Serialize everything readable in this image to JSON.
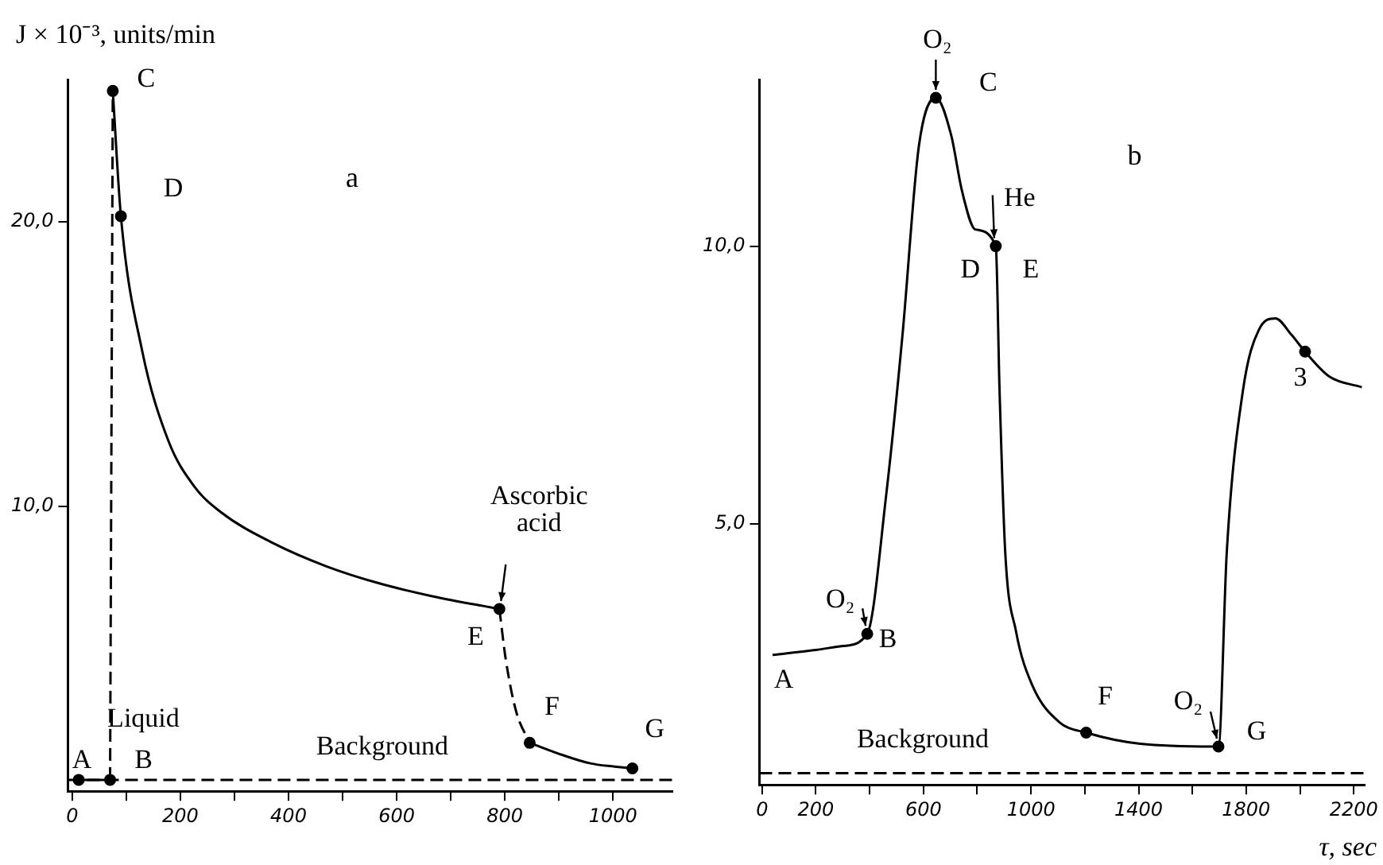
{
  "chart_data": [
    {
      "type": "line",
      "title": "a",
      "ylabel": "J × 10⁻³, units/min",
      "xlim": [
        -8,
        1110
      ],
      "xticks": [
        0,
        {
          "value": 100,
          "label": null
        },
        200,
        {
          "value": 300,
          "label": null
        },
        400,
        {
          "value": 500,
          "label": null
        },
        600,
        {
          "value": 700,
          "label": null
        },
        800,
        {
          "value": 900,
          "label": null
        },
        1000
      ],
      "ylim": [
        0,
        25
      ],
      "yticks": [
        {
          "value": 10,
          "label": "10,0"
        },
        {
          "value": 20,
          "label": "20,0"
        }
      ],
      "series": [
        {
          "color": "#000000",
          "line_style": "solid",
          "marker": "none",
          "x": [
            12,
            70
          ],
          "values": [
            0.4,
            0.4
          ]
        },
        {
          "color": "#000000",
          "line_style": "dashed",
          "marker": "none",
          "x": [
            70,
            75
          ],
          "values": [
            0.4,
            24.6
          ]
        },
        {
          "color": "#000000",
          "line_style": "solid",
          "marker": "none",
          "x": [
            75,
            90,
            129,
            178,
            226,
            275,
            373,
            470,
            568,
            666,
            790
          ],
          "values": [
            24.6,
            20.2,
            15.5,
            12.3,
            10.7,
            9.8,
            8.7,
            7.9,
            7.3,
            6.85,
            6.4
          ]
        },
        {
          "color": "#000000",
          "line_style": "dashed",
          "marker": "none",
          "x": [
            790,
            802,
            821,
            846
          ],
          "values": [
            6.4,
            4.6,
            2.8,
            1.7
          ]
        },
        {
          "color": "#000000",
          "line_style": "solid",
          "marker": "none",
          "x": [
            846,
            907,
            958,
            1036
          ],
          "values": [
            1.7,
            1.27,
            0.98,
            0.8
          ]
        },
        {
          "type": "scatter",
          "color": "#000000",
          "marker": "circle",
          "x": [
            12,
            70,
            75,
            90,
            790,
            846,
            1036
          ],
          "values": [
            0.4,
            0.4,
            24.6,
            20.2,
            6.4,
            1.7,
            0.8
          ]
        }
      ],
      "ref_lines": [
        {
          "axis": "y",
          "value": 0.4,
          "label": "Background",
          "color": "#000000",
          "line_style": "dashed"
        }
      ],
      "annotations": [
        {
          "text": "A",
          "x": 12,
          "y": 0.4
        },
        {
          "text": "B",
          "x": 70,
          "y": 0.4
        },
        {
          "text": "C",
          "x": 75,
          "y": 24.6
        },
        {
          "text": "D",
          "x": 90,
          "y": 20.2
        },
        {
          "text": "E",
          "x": 790,
          "y": 6.4
        },
        {
          "text": "F",
          "x": 846,
          "y": 1.7
        },
        {
          "text": "G",
          "x": 1036,
          "y": 0.8
        },
        {
          "text": "Liquid",
          "x": 67,
          "y": 0.4
        },
        {
          "text": "Ascorbic acid",
          "x": 790,
          "y": 6.4
        }
      ]
    },
    {
      "type": "line",
      "title": "b",
      "xlabel": "τ, sec",
      "xlim": [
        -10,
        2240
      ],
      "xticks": [
        0,
        200,
        {
          "value": 400,
          "label": null
        },
        600,
        {
          "value": 800,
          "label": null
        },
        1000,
        {
          "value": 1200,
          "label": null
        },
        1400,
        {
          "value": 1600,
          "label": null
        },
        1800,
        {
          "value": 2000,
          "label": null
        },
        2200
      ],
      "ylim": [
        0.3,
        13
      ],
      "yticks": [
        {
          "value": 5,
          "label": "5,0"
        },
        {
          "value": 10,
          "label": "10,0"
        }
      ],
      "series": [
        {
          "color": "#000000",
          "line_style": "solid",
          "marker": "none",
          "x": [
            39,
            200,
            300,
            391,
            461,
            522,
            583,
            646,
            703,
            743,
            793,
            869,
            883,
            904,
            944,
            1004,
            1105,
            1205,
            1406,
            1697,
            1728,
            1788,
            1848,
            1909,
            1969,
            2019,
            2110,
            2230
          ],
          "values": [
            2.64,
            2.73,
            2.8,
            3.02,
            5.5,
            8.4,
            11.8,
            12.67,
            12.0,
            11.0,
            10.3,
            10.0,
            7.4,
            4.5,
            3.07,
            2.1,
            1.43,
            1.24,
            1.04,
            0.99,
            4.5,
            7.4,
            8.5,
            8.7,
            8.4,
            8.1,
            7.65,
            7.46
          ]
        },
        {
          "type": "scatter",
          "color": "#000000",
          "marker": "circle",
          "x": [
            391,
            646,
            869,
            1205,
            1697,
            2019
          ],
          "values": [
            3.02,
            12.67,
            10.0,
            1.24,
            0.99,
            8.1
          ]
        }
      ],
      "ref_lines": [
        {
          "axis": "y",
          "value": 0.51,
          "label": "Background",
          "color": "#000000",
          "line_style": "dashed"
        }
      ],
      "annotations": [
        {
          "text": "A",
          "x": 39,
          "y": 2.64
        },
        {
          "text": "B",
          "x": 391,
          "y": 3.02
        },
        {
          "text": "C",
          "x": 646,
          "y": 12.67
        },
        {
          "text": "D",
          "x": 869,
          "y": 10.0
        },
        {
          "text": "E",
          "x": 869,
          "y": 10.0
        },
        {
          "text": "F",
          "x": 1205,
          "y": 1.24
        },
        {
          "text": "G",
          "x": 1697,
          "y": 0.99
        },
        {
          "text": "3",
          "x": 2019,
          "y": 8.1
        },
        {
          "text": "O₂",
          "x": 391,
          "y": 3.02
        },
        {
          "text": "O₂",
          "x": 646,
          "y": 12.67
        },
        {
          "text": "He",
          "x": 869,
          "y": 10.0
        },
        {
          "text": "O₂",
          "x": 1697,
          "y": 0.99
        }
      ]
    }
  ]
}
